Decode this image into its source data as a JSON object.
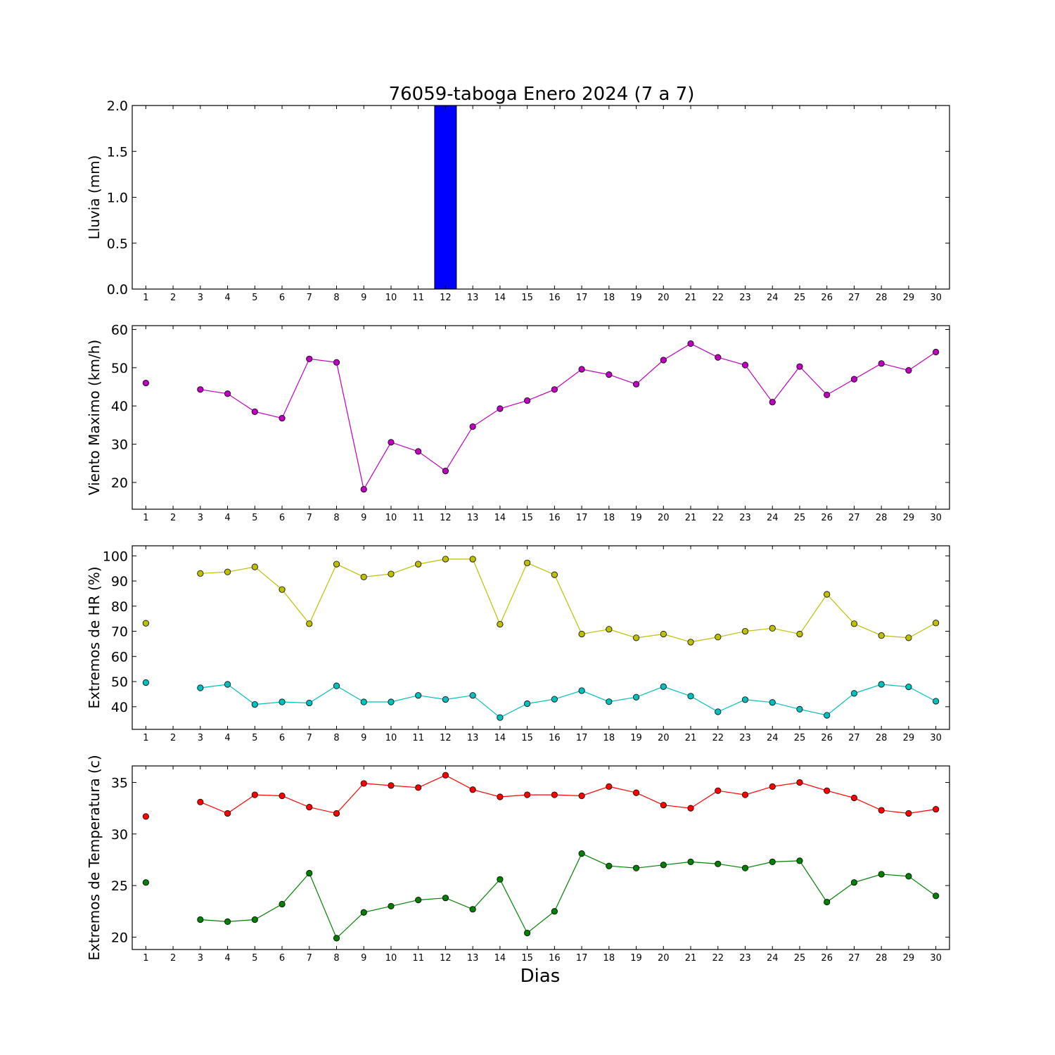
{
  "chart_data": {
    "title": "76059-taboga Enero 2024  (7 a 7)",
    "xlabel": "Dias",
    "x": [
      1,
      2,
      3,
      4,
      5,
      6,
      7,
      8,
      9,
      10,
      11,
      12,
      13,
      14,
      15,
      16,
      17,
      18,
      19,
      20,
      21,
      22,
      23,
      24,
      25,
      26,
      27,
      28,
      29,
      30
    ],
    "xlim": [
      0.5,
      30.5
    ],
    "panels": [
      {
        "type": "bar",
        "ylabel": "Lluvia (mm)",
        "ylim": [
          0,
          2.0
        ],
        "yticks": [
          "0.0",
          "0.5",
          "1.0",
          "1.5",
          "2.0"
        ],
        "series": [
          {
            "color": "#0000ff",
            "values": [
              0,
              null,
              0,
              0,
              0,
              0,
              0,
              0,
              0,
              0,
              0,
              2.0,
              0,
              0,
              0,
              0,
              0,
              0,
              0,
              0,
              0,
              0,
              0,
              0,
              0,
              0,
              0,
              0,
              0,
              0
            ]
          }
        ]
      },
      {
        "type": "line",
        "ylabel": "Viento Maximo (km/h)",
        "ylim": [
          13,
          61
        ],
        "yticks": [
          "20",
          "30",
          "40",
          "50",
          "60"
        ],
        "series": [
          {
            "color": "#bf00bf",
            "values": [
              46,
              null,
              44.3,
              43.2,
              38.5,
              36.8,
              52.3,
              51.4,
              18.2,
              30.5,
              28.1,
              23.0,
              34.6,
              39.3,
              41.4,
              44.3,
              49.6,
              48.2,
              45.7,
              52.0,
              56.3,
              52.7,
              50.7,
              41.0,
              50.3,
              42.9,
              47.0,
              51.1,
              49.3,
              54.1
            ]
          }
        ]
      },
      {
        "type": "line",
        "ylabel": "Extremos de HR (%)",
        "ylim": [
          31,
          104
        ],
        "yticks": [
          "40",
          "50",
          "60",
          "70",
          "80",
          "90",
          "100"
        ],
        "series": [
          {
            "color": "#bfbf00",
            "values": [
              73.2,
              null,
              93.0,
              93.6,
              95.6,
              86.6,
              73.0,
              96.7,
              91.6,
              92.8,
              96.7,
              98.7,
              98.7,
              72.8,
              97.2,
              92.5,
              68.9,
              70.8,
              67.4,
              68.9,
              65.7,
              67.7,
              70.0,
              71.2,
              68.9,
              84.7,
              73.0,
              68.3,
              67.4,
              73.3
            ]
          },
          {
            "color": "#00bfbf",
            "values": [
              49.6,
              null,
              47.5,
              48.9,
              40.9,
              41.9,
              41.5,
              48.3,
              41.9,
              41.9,
              44.5,
              42.9,
              44.5,
              35.7,
              41.2,
              43.0,
              46.4,
              42.0,
              43.8,
              48.0,
              44.2,
              38.0,
              42.8,
              41.7,
              39.0,
              36.6,
              45.3,
              48.9,
              47.9,
              42.2
            ]
          }
        ]
      },
      {
        "type": "line",
        "ylabel": "Extremos de Temperatura (c)",
        "ylim": [
          18.8,
          36.6
        ],
        "yticks": [
          "20",
          "25",
          "30",
          "35"
        ],
        "series": [
          {
            "color": "#ff0000",
            "values": [
              31.7,
              null,
              33.1,
              32.0,
              33.8,
              33.7,
              32.6,
              32.0,
              34.9,
              34.7,
              34.5,
              35.7,
              34.3,
              33.6,
              33.8,
              33.8,
              33.7,
              34.6,
              34.0,
              32.8,
              32.5,
              34.2,
              33.8,
              34.6,
              35.0,
              34.2,
              33.5,
              32.3,
              32.0,
              32.4
            ]
          },
          {
            "color": "#008000",
            "values": [
              25.3,
              null,
              21.7,
              21.5,
              21.7,
              23.2,
              26.2,
              19.9,
              22.4,
              23.0,
              23.6,
              23.8,
              22.7,
              25.6,
              20.4,
              22.5,
              28.1,
              26.9,
              26.7,
              27.0,
              27.3,
              27.1,
              26.7,
              27.3,
              27.4,
              23.4,
              25.3,
              26.1,
              25.9,
              24.0
            ]
          }
        ]
      }
    ]
  }
}
